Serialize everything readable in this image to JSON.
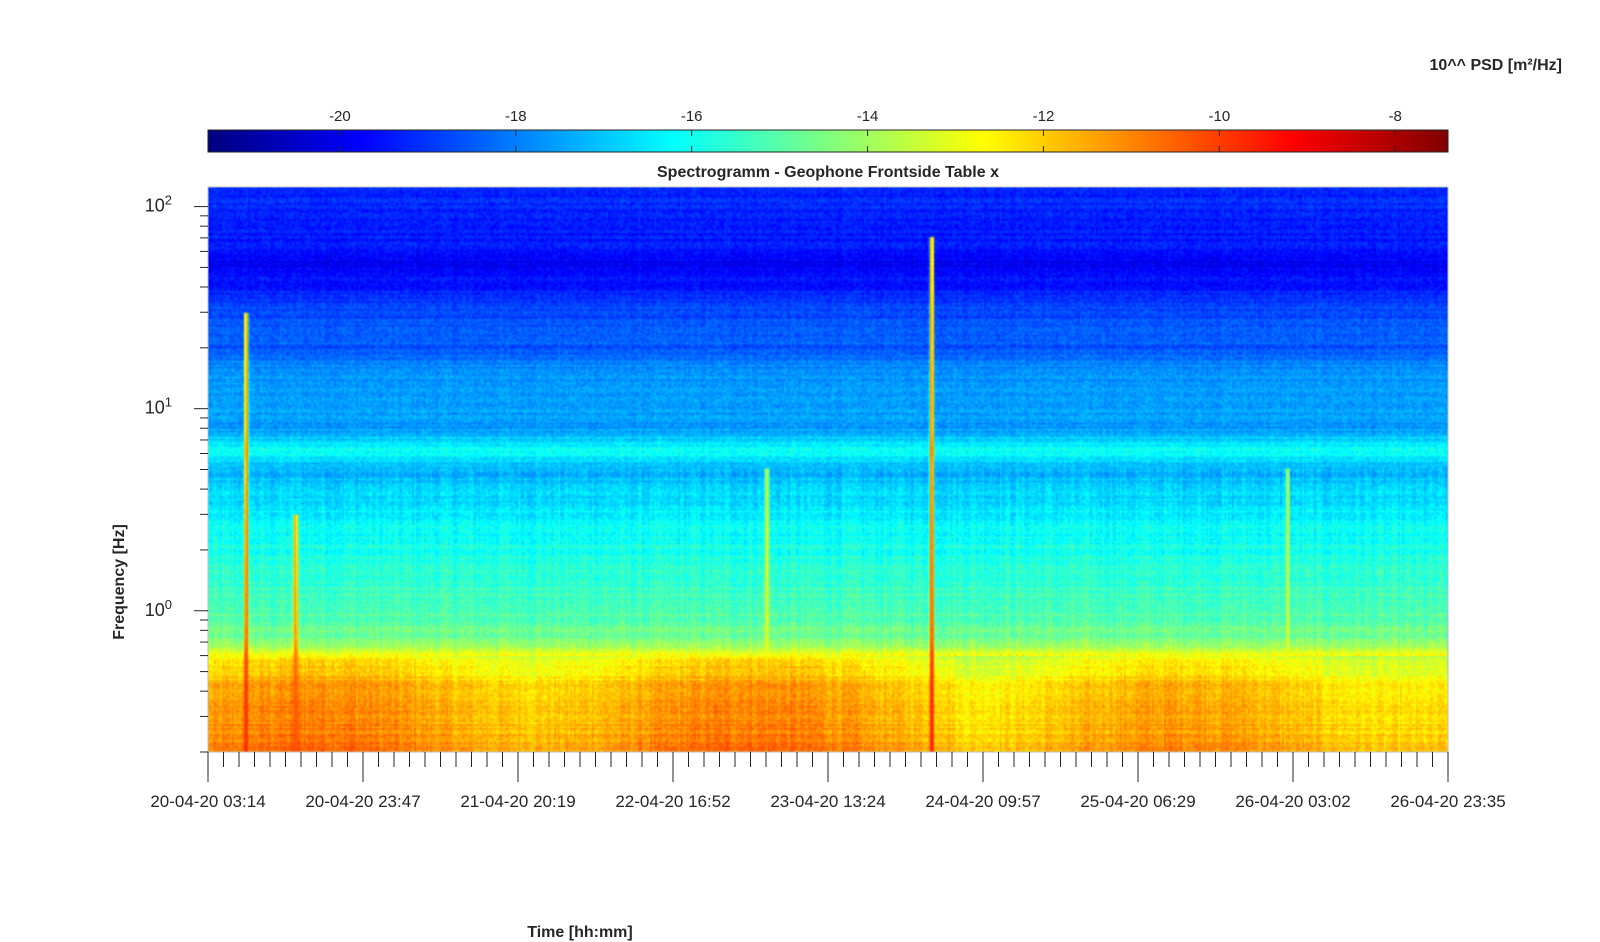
{
  "chart_data": {
    "type": "heatmap",
    "title": "Spectrogramm - Geophone Frontside Table x",
    "xlabel": "Time [hh:mm]",
    "ylabel": "Frequency [Hz]",
    "y_scale": "log",
    "ylim": [
      0.2,
      125
    ],
    "x_tick_labels": [
      "20-04-20 03:14",
      "20-04-20 23:47",
      "21-04-20 20:19",
      "22-04-20 16:52",
      "23-04-20 13:24",
      "24-04-20 09:57",
      "25-04-20 06:29",
      "26-04-20 03:02",
      "26-04-20 23:35"
    ],
    "y_tick_labels": [
      {
        "value": 1,
        "base": "10",
        "exp": "0"
      },
      {
        "value": 10,
        "base": "10",
        "exp": "1"
      },
      {
        "value": 100,
        "base": "10",
        "exp": "2"
      }
    ],
    "colorbar": {
      "label": "10^^ PSD [m²/Hz]",
      "location": "top",
      "colormap": "jet",
      "range": [
        -21.5,
        -7.4
      ],
      "ticks": [
        -20,
        -18,
        -16,
        -14,
        -12,
        -10,
        -8
      ],
      "tick_labels": [
        "-20",
        "-18",
        "-16",
        "-14",
        "-12",
        "-10",
        "-8"
      ]
    },
    "profile_log_psd_vs_freq": [
      [
        125,
        -19.3
      ],
      [
        100,
        -19.2
      ],
      [
        60,
        -19.5
      ],
      [
        52,
        -20.0
      ],
      [
        40,
        -19.4
      ],
      [
        30,
        -18.7
      ],
      [
        20,
        -18.5
      ],
      [
        15,
        -17.6
      ],
      [
        10,
        -17.5
      ],
      [
        8,
        -17.6
      ],
      [
        6.2,
        -16.0
      ],
      [
        5,
        -17.3
      ],
      [
        3,
        -16.3
      ],
      [
        1.5,
        -15.6
      ],
      [
        1,
        -15.2
      ],
      [
        0.7,
        -14.5
      ],
      [
        0.6,
        -12.8
      ],
      [
        0.4,
        -11.5
      ],
      [
        0.2,
        -11.2
      ]
    ],
    "events": [
      {
        "day_fraction": 0.03,
        "f_max": 30,
        "peak_log_psd": -9.5
      },
      {
        "day_fraction": 0.07,
        "f_max": 3,
        "peak_log_psd": -10.2
      },
      {
        "day_fraction": 0.45,
        "f_max": 5,
        "peak_log_psd": -13.0
      },
      {
        "day_fraction": 0.583,
        "f_max": 70,
        "peak_log_psd": -9.0
      },
      {
        "day_fraction": 0.87,
        "f_max": 5,
        "peak_log_psd": -13.0
      }
    ]
  }
}
